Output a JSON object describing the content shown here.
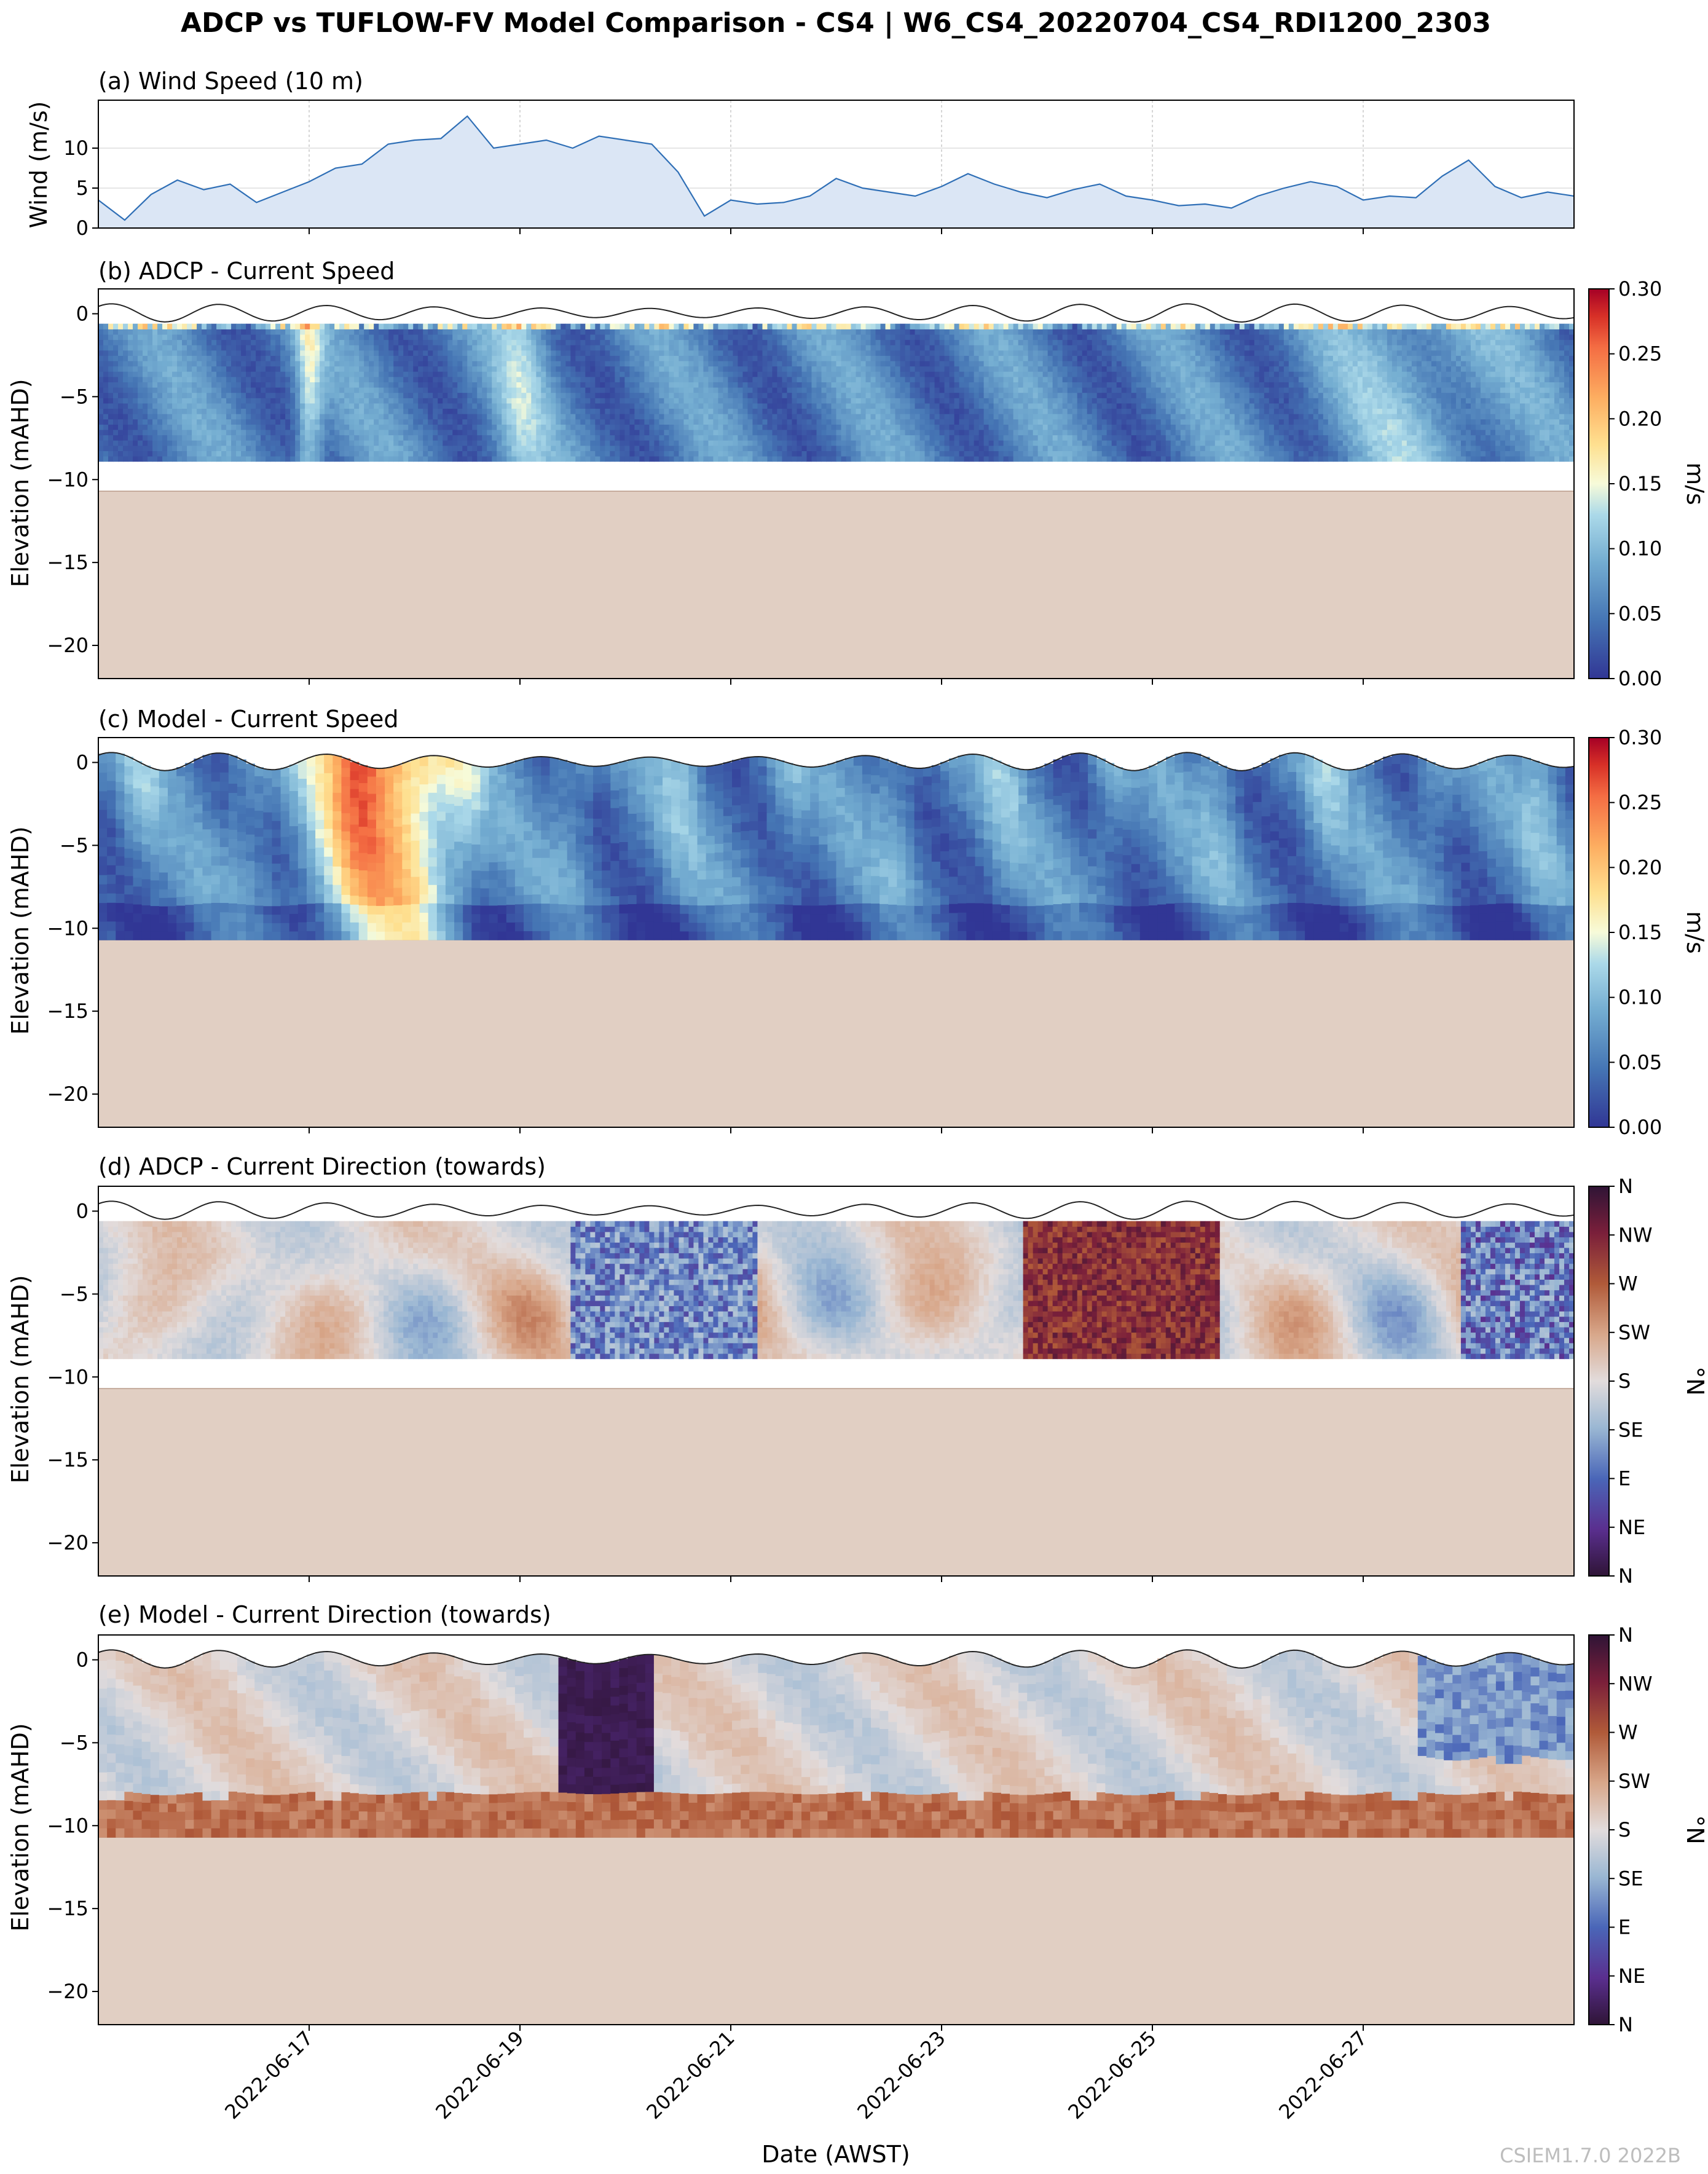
{
  "figure": {
    "title": "ADCP vs TUFLOW-FV Model Comparison - CS4 | W6_CS4_20220704_CS4_RDI1200_2303",
    "xlabel": "Date (AWST)",
    "watermark": "CSIEM1.7.0 2022B",
    "xticks": [
      "2022-06-17",
      "2022-06-19",
      "2022-06-21",
      "2022-06-23",
      "2022-06-25",
      "2022-06-27"
    ]
  },
  "chart_data": [
    {
      "type": "area",
      "title": "(a) Wind Speed (10 m)",
      "ylabel": "Wind (m/s)",
      "ylim": [
        0,
        16
      ],
      "yticks": [
        0,
        5,
        10
      ],
      "x_range": [
        "2022-06-15 00:00",
        "2022-06-29 00:00"
      ],
      "x": [
        "06-15 00:00",
        "06-15 06:00",
        "06-15 12:00",
        "06-15 18:00",
        "06-16 00:00",
        "06-16 06:00",
        "06-16 12:00",
        "06-16 18:00",
        "06-17 00:00",
        "06-17 06:00",
        "06-17 12:00",
        "06-17 18:00",
        "06-18 00:00",
        "06-18 06:00",
        "06-18 12:00",
        "06-18 18:00",
        "06-19 00:00",
        "06-19 06:00",
        "06-19 12:00",
        "06-19 18:00",
        "06-20 00:00",
        "06-20 06:00",
        "06-20 12:00",
        "06-20 18:00",
        "06-21 00:00",
        "06-21 06:00",
        "06-21 12:00",
        "06-21 18:00",
        "06-22 00:00",
        "06-22 06:00",
        "06-22 12:00",
        "06-22 18:00",
        "06-23 00:00",
        "06-23 06:00",
        "06-23 12:00",
        "06-23 18:00",
        "06-24 00:00",
        "06-24 06:00",
        "06-24 12:00",
        "06-24 18:00",
        "06-25 00:00",
        "06-25 06:00",
        "06-25 12:00",
        "06-25 18:00",
        "06-26 00:00",
        "06-26 06:00",
        "06-26 12:00",
        "06-26 18:00",
        "06-27 00:00",
        "06-27 06:00",
        "06-27 12:00",
        "06-27 18:00",
        "06-28 00:00",
        "06-28 06:00",
        "06-28 12:00",
        "06-28 18:00",
        "06-29 00:00"
      ],
      "values": [
        3.5,
        1.0,
        4.2,
        6.0,
        4.8,
        5.5,
        3.2,
        4.5,
        5.8,
        7.5,
        8.0,
        10.5,
        11.0,
        11.2,
        14.0,
        10.0,
        10.5,
        11.0,
        10.0,
        11.5,
        11.0,
        10.5,
        7.0,
        1.5,
        3.5,
        3.0,
        3.2,
        4.0,
        6.2,
        5.0,
        4.5,
        4.0,
        5.2,
        6.8,
        5.5,
        4.5,
        3.8,
        4.8,
        5.5,
        4.0,
        3.5,
        2.8,
        3.0,
        2.5,
        4.0,
        5.0,
        5.8,
        5.2,
        3.5,
        4.0,
        3.8,
        6.5,
        8.5,
        5.2,
        3.8,
        4.5,
        4.0
      ],
      "series": [
        {
          "values_ref": "values"
        }
      ],
      "grid": true,
      "fill_color": "#dbe6f5",
      "line_color": "#2f6fb6"
    },
    {
      "type": "heatmap",
      "title": "(b) ADCP - Current Speed",
      "ylabel": "Elevation (mAHD)",
      "ylim": [
        -22,
        1.5
      ],
      "yticks": [
        0,
        -5,
        -10,
        -15,
        -20
      ],
      "colorbar": {
        "label": "m/s",
        "range": [
          0,
          0.3
        ],
        "ticks": [
          "0.00",
          "0.05",
          "0.10",
          "0.15",
          "0.20",
          "0.25",
          "0.30"
        ],
        "colormap": "RdYlBu_r"
      },
      "data_depth_range": [
        -8.9,
        -0.6
      ],
      "bed_level": -10.7,
      "surface_level_range": [
        -0.4,
        0.6
      ],
      "pattern": "mostly 0.03–0.10 m/s, brighter bands (~0.12–0.15 m/s) near 2022-06-17 and 2022-06-19, high values near surface"
    },
    {
      "type": "heatmap",
      "title": "(c) Model - Current Speed",
      "ylabel": "Elevation (mAHD)",
      "ylim": [
        -22,
        1.5
      ],
      "yticks": [
        0,
        -5,
        -10,
        -15,
        -20
      ],
      "colorbar": {
        "label": "m/s",
        "range": [
          0,
          0.3
        ],
        "ticks": [
          "0.00",
          "0.05",
          "0.10",
          "0.15",
          "0.20",
          "0.25",
          "0.30"
        ],
        "colormap": "RdYlBu_r"
      },
      "data_depth_range": [
        -10.7,
        0.6
      ],
      "bed_level": -10.7,
      "pattern": "peak ~0.25–0.3 m/s near 2022-06-17 to 06-18, otherwise 0.03–0.12 m/s"
    },
    {
      "type": "heatmap",
      "title": "(d) ADCP - Current Direction (towards)",
      "ylabel": "Elevation (mAHD)",
      "ylim": [
        -22,
        1.5
      ],
      "yticks": [
        0,
        -5,
        -10,
        -15,
        -20
      ],
      "colorbar": {
        "label": "°N",
        "range": [
          0,
          360
        ],
        "ticks": [
          "N",
          "NE",
          "E",
          "SE",
          "S",
          "SW",
          "W",
          "NW",
          "N"
        ],
        "colormap": "twilight_shifted"
      },
      "data_depth_range": [
        -8.9,
        -0.6
      ],
      "bed_level": -10.7,
      "pattern": "mostly S/SW; E/NE near 2022-06-20; W/NW near 2022-06-24 and 2022-06-28"
    },
    {
      "type": "heatmap",
      "title": "(e) Model - Current Direction (towards)",
      "ylabel": "Elevation (mAHD)",
      "ylim": [
        -22,
        1.5
      ],
      "yticks": [
        0,
        -5,
        -10,
        -15,
        -20
      ],
      "colorbar": {
        "label": "°N",
        "range": [
          0,
          360
        ],
        "ticks": [
          "N",
          "NE",
          "E",
          "SE",
          "S",
          "SW",
          "W",
          "NW",
          "N"
        ],
        "colormap": "twilight_shifted"
      },
      "data_depth_range": [
        -10.7,
        0.6
      ],
      "bed_level": -10.7,
      "pattern": "mostly S; N near 2022-06-19 evening; SW/W near bed; E/NE near 2022-06-28"
    }
  ]
}
